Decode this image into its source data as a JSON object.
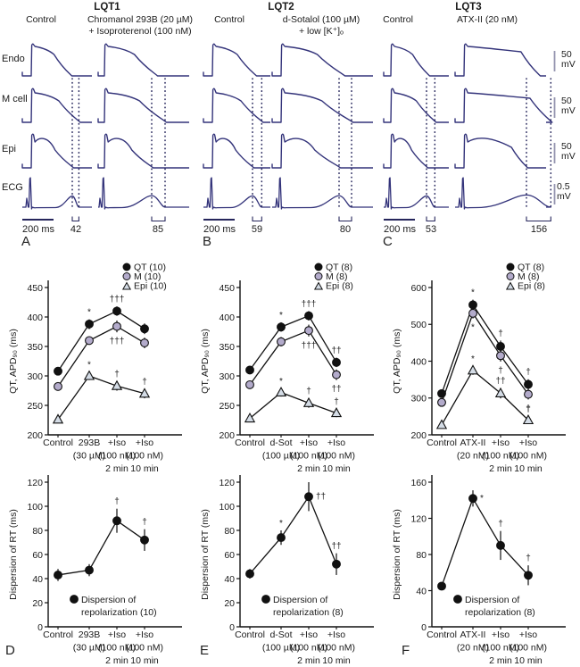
{
  "top": {
    "panels": [
      {
        "letter": "A",
        "title": "LQT1",
        "control_label": "Control",
        "drug_label_line1": "Chromanol 293B (20 µM)",
        "drug_label_line2": "+ Isoproterenol (100 nM)",
        "time_scale": "200 ms",
        "tpe_control": "42",
        "tpe_drug": "85"
      },
      {
        "letter": "B",
        "title": "LQT2",
        "control_label": "Control",
        "drug_label_line1": "d-Sotalol (100 µM)",
        "drug_label_line2": "+ low [K⁺]ₒ",
        "time_scale": "200 ms",
        "tpe_control": "59",
        "tpe_drug": "80"
      },
      {
        "letter": "C",
        "title": "LQT3",
        "control_label": "Control",
        "drug_label_line1": "ATX-II (20 nM)",
        "drug_label_line2": "",
        "time_scale": "200 ms",
        "tpe_control": "53",
        "tpe_drug": "156"
      }
    ],
    "row_labels": [
      "Endo",
      "M cell",
      "Epi",
      "ECG"
    ],
    "scale_bars": [
      {
        "value": "50",
        "unit": "mV"
      },
      {
        "value": "50",
        "unit": "mV"
      },
      {
        "value": "50",
        "unit": "mV"
      },
      {
        "value": "0.5",
        "unit": "mV"
      }
    ]
  },
  "colors": {
    "trace": "#33337a",
    "dotted": "#26265c",
    "scalebar": "#9494af",
    "chart": "#111111",
    "m_fill": "#b3abcb",
    "epi_fill": "#d4dce6"
  },
  "chart_data": [
    {
      "type": "line",
      "ylabel": "QT, APD₉₀ (ms)",
      "ylim": [
        200,
        450
      ],
      "ystep": 50,
      "categories": [
        [
          "Control"
        ],
        [
          "293B",
          "(30 µM)"
        ],
        [
          "+Iso",
          "(100 nM)",
          "2 min"
        ],
        [
          "+Iso",
          "(100 nM)",
          "10 min"
        ]
      ],
      "legend_position": "top-right",
      "grid": false,
      "series": [
        {
          "name": "QT (10)",
          "marker": "circle",
          "fill": "#111111",
          "values": [
            308,
            388,
            410,
            380
          ],
          "err": [
            7,
            8,
            8,
            9
          ],
          "ann": [
            null,
            {
              "t": "*",
              "pos": "above"
            },
            {
              "t": "†††",
              "pos": "above"
            },
            null
          ]
        },
        {
          "name": "M (10)",
          "marker": "circle",
          "fill": "#b3abcb",
          "values": [
            282,
            360,
            384,
            356
          ],
          "err": [
            7,
            7,
            10,
            9
          ],
          "ann": [
            null,
            {
              "t": "*",
              "pos": "above"
            },
            {
              "t": "†††",
              "pos": "below"
            },
            null
          ]
        },
        {
          "name": "Epi (10)",
          "marker": "triangle",
          "fill": "#d4dce6",
          "values": [
            226,
            300,
            283,
            270
          ],
          "err": [
            6,
            7,
            8,
            8
          ],
          "ann": [
            null,
            {
              "t": "*",
              "pos": "above"
            },
            {
              "t": "†",
              "pos": "above"
            },
            {
              "t": "†",
              "pos": "above"
            }
          ]
        }
      ]
    },
    {
      "type": "line",
      "ylabel": "QT, APD₉₀ (ms)",
      "ylim": [
        200,
        450
      ],
      "ystep": 50,
      "categories": [
        [
          "Control"
        ],
        [
          "d-Sot",
          "(100 µM)"
        ],
        [
          "+Iso",
          "(100 nM)",
          "2 min"
        ],
        [
          "+Iso",
          "(100 nM)",
          "10 min"
        ]
      ],
      "legend_position": "top-right",
      "grid": false,
      "series": [
        {
          "name": "QT (8)",
          "marker": "circle",
          "fill": "#111111",
          "values": [
            310,
            383,
            402,
            323
          ],
          "err": [
            7,
            8,
            8,
            8
          ],
          "ann": [
            null,
            {
              "t": "*",
              "pos": "above"
            },
            {
              "t": "†††",
              "pos": "above"
            },
            {
              "t": "††",
              "pos": "above"
            }
          ]
        },
        {
          "name": "M (8)",
          "marker": "circle",
          "fill": "#b3abcb",
          "values": [
            285,
            358,
            377,
            302
          ],
          "err": [
            7,
            8,
            10,
            9
          ],
          "ann": [
            null,
            {
              "t": "*",
              "pos": "above"
            },
            {
              "t": "†††",
              "pos": "below"
            },
            {
              "t": "††",
              "pos": "below"
            }
          ]
        },
        {
          "name": "Epi (8)",
          "marker": "triangle",
          "fill": "#d4dce6",
          "values": [
            228,
            272,
            254,
            237
          ],
          "err": [
            6,
            7,
            8,
            7
          ],
          "ann": [
            null,
            {
              "t": "*",
              "pos": "above"
            },
            {
              "t": "†",
              "pos": "above"
            },
            {
              "t": "†",
              "pos": "above"
            }
          ]
        }
      ]
    },
    {
      "type": "line",
      "ylabel": "QT, APD₉₀ (ms)",
      "ylim": [
        200,
        600
      ],
      "ystep": 100,
      "categories": [
        [
          "Control"
        ],
        [
          "ATX-II",
          "(20 nM)"
        ],
        [
          "+Iso",
          "(100 nM)",
          "2 min"
        ],
        [
          "+Iso",
          "(100 nM)",
          "10 min"
        ]
      ],
      "legend_position": "top-right",
      "grid": false,
      "series": [
        {
          "name": "QT (8)",
          "marker": "circle",
          "fill": "#111111",
          "values": [
            312,
            553,
            440,
            337
          ],
          "err": [
            10,
            14,
            16,
            14
          ],
          "ann": [
            null,
            {
              "t": "*",
              "pos": "above"
            },
            {
              "t": "†",
              "pos": "above"
            },
            {
              "t": "†",
              "pos": "above"
            }
          ]
        },
        {
          "name": "M (8)",
          "marker": "circle",
          "fill": "#b3abcb",
          "values": [
            288,
            530,
            415,
            310
          ],
          "err": [
            10,
            14,
            16,
            14
          ],
          "ann": [
            null,
            {
              "t": "*",
              "pos": "below"
            },
            {
              "t": "†",
              "pos": "below"
            },
            {
              "t": "†",
              "pos": "below"
            }
          ]
        },
        {
          "name": "Epi (8)",
          "marker": "triangle",
          "fill": "#d4dce6",
          "values": [
            227,
            375,
            313,
            240
          ],
          "err": [
            8,
            12,
            14,
            10
          ],
          "ann": [
            null,
            {
              "t": "*",
              "pos": "above"
            },
            {
              "t": "††",
              "pos": "above"
            },
            {
              "t": "†",
              "pos": "above"
            }
          ]
        }
      ]
    },
    {
      "type": "line",
      "panel_letter": "D",
      "ylabel": "Dispersion of RT (ms)",
      "ylim": [
        0,
        120
      ],
      "ystep": 20,
      "categories": [
        [
          "Control"
        ],
        [
          "293B",
          "(30 µM)"
        ],
        [
          "+Iso",
          "(100 nM)",
          "2 min"
        ],
        [
          "+Iso",
          "(100 nM)",
          "10 min"
        ]
      ],
      "legend_position": "inside-bottom",
      "legend_lines": [
        "Dispersion of",
        "repolarization (10)"
      ],
      "grid": false,
      "series": [
        {
          "name": "Dispersion of repolarization (10)",
          "marker": "circle",
          "fill": "#111111",
          "values": [
            43,
            47,
            88,
            72
          ],
          "err": [
            5,
            5,
            10,
            9
          ],
          "ann": [
            null,
            null,
            {
              "t": "†",
              "pos": "above"
            },
            {
              "t": "†",
              "pos": "above"
            }
          ]
        }
      ]
    },
    {
      "type": "line",
      "panel_letter": "E",
      "ylabel": "Dispersion of RT (ms)",
      "ylim": [
        0,
        120
      ],
      "ystep": 20,
      "categories": [
        [
          "Control"
        ],
        [
          "d-Sot",
          "(100 µM)"
        ],
        [
          "+Iso",
          "(100 nM)",
          "2 min"
        ],
        [
          "+Iso",
          "(100 nM)",
          "10 min"
        ]
      ],
      "legend_position": "inside-bottom",
      "legend_lines": [
        "Dispersion of",
        "repolarization (8)"
      ],
      "grid": false,
      "series": [
        {
          "name": "Dispersion of repolarization (8)",
          "marker": "circle",
          "fill": "#111111",
          "values": [
            44,
            74,
            108,
            52
          ],
          "err": [
            4,
            6,
            12,
            9
          ],
          "ann": [
            null,
            {
              "t": "*",
              "pos": "above"
            },
            {
              "t": "††",
              "pos": "right"
            },
            {
              "t": "††",
              "pos": "above"
            }
          ]
        }
      ]
    },
    {
      "type": "line",
      "panel_letter": "F",
      "ylabel": "Dispersion of RT (ms)",
      "ylim": [
        0,
        160
      ],
      "ystep": 40,
      "categories": [
        [
          "Control"
        ],
        [
          "ATX-II",
          "(20 nM)"
        ],
        [
          "+Iso",
          "(100 nM)",
          "2 min"
        ],
        [
          "+Iso",
          "(100 nM)",
          "10 min"
        ]
      ],
      "legend_position": "inside-bottom",
      "legend_lines": [
        "Dispersion of",
        "repolarization (8)"
      ],
      "grid": false,
      "series": [
        {
          "name": "Dispersion of repolarization (8)",
          "marker": "circle",
          "fill": "#111111",
          "values": [
            45,
            142,
            90,
            57
          ],
          "err": [
            4,
            9,
            16,
            11
          ],
          "ann": [
            null,
            {
              "t": "*",
              "pos": "right"
            },
            {
              "t": "†",
              "pos": "above"
            },
            {
              "t": "†",
              "pos": "above"
            }
          ]
        }
      ]
    }
  ]
}
